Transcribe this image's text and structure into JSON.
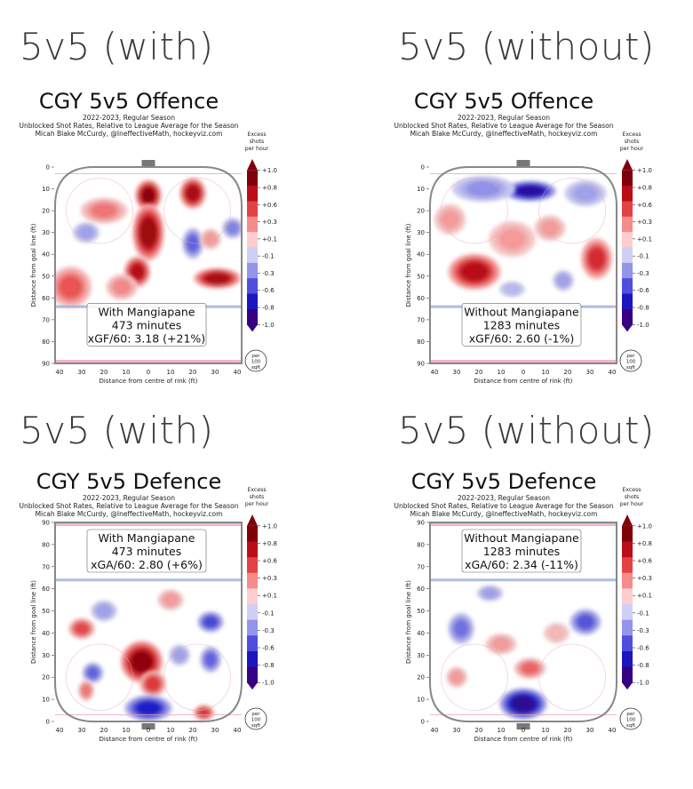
{
  "chart_data": [
    {
      "type": "heatmap",
      "heading": "5v5 (with)",
      "title": "CGY 5v5 Offence",
      "subtitle_lines": [
        "2022-2023, Regular Season",
        "Unblocked Shot Rates, Relative to League Average for the Season",
        "Micah Blake McCurdy, @IneffectiveMath, hockeyviz.com"
      ],
      "orientation": "offence",
      "xlabel": "Distance from centre of rink (ft)",
      "ylabel": "Distance from goal line (ft)",
      "x_ticks": [
        "40",
        "30",
        "20",
        "10",
        "0",
        "10",
        "20",
        "30",
        "40"
      ],
      "y_ticks": [
        "0",
        "10",
        "20",
        "30",
        "40",
        "50",
        "60",
        "70",
        "80",
        "90"
      ],
      "xlim": [
        -42,
        42
      ],
      "ylim": [
        0,
        90
      ],
      "info_lines": [
        "With Mangiapane",
        "473 minutes",
        "xGF/60: 3.18 (+21%)"
      ],
      "hotspots": [
        {
          "x": 0,
          "y": 13,
          "v": 0.95,
          "rx": 5,
          "ry": 6
        },
        {
          "x": 0,
          "y": 30,
          "v": 0.9,
          "rx": 6,
          "ry": 11
        },
        {
          "x": -5,
          "y": 48,
          "v": 0.8,
          "rx": 5,
          "ry": 6
        },
        {
          "x": 20,
          "y": 12,
          "v": 0.85,
          "rx": 5,
          "ry": 6
        },
        {
          "x": 31,
          "y": 51,
          "v": 0.85,
          "rx": 9,
          "ry": 4
        },
        {
          "x": -35,
          "y": 55,
          "v": 0.5,
          "rx": 8,
          "ry": 8
        },
        {
          "x": -20,
          "y": 20,
          "v": 0.4,
          "rx": 9,
          "ry": 5
        },
        {
          "x": -28,
          "y": 30,
          "v": -0.3,
          "rx": 5,
          "ry": 4
        },
        {
          "x": 20,
          "y": 35,
          "v": -0.5,
          "rx": 4,
          "ry": 6
        },
        {
          "x": 38,
          "y": 28,
          "v": -0.4,
          "rx": 4,
          "ry": 4
        },
        {
          "x": -12,
          "y": 55,
          "v": 0.35,
          "rx": 6,
          "ry": 5
        },
        {
          "x": 28,
          "y": 33,
          "v": 0.3,
          "rx": 4,
          "ry": 4
        }
      ],
      "colorbar": {
        "title_lines": [
          "Excess",
          "shots",
          "per hour"
        ],
        "labels": [
          "+1.0",
          "+0.8",
          "+0.6",
          "+0.3",
          "+0.1",
          "-0.1",
          "-0.3",
          "-0.6",
          "-0.8",
          "-1.0"
        ],
        "unit_lines": [
          "per",
          "100",
          "sqft"
        ]
      }
    },
    {
      "type": "heatmap",
      "heading": "5v5 (without)",
      "title": "CGY 5v5 Offence",
      "subtitle_lines": [
        "2022-2023, Regular Season",
        "Unblocked Shot Rates, Relative to League Average for the Season",
        "Micah Blake McCurdy, @IneffectiveMath, hockeyviz.com"
      ],
      "orientation": "offence",
      "xlabel": "Distance from centre of rink (ft)",
      "ylabel": "Distance from goal line (ft)",
      "x_ticks": [
        "40",
        "30",
        "20",
        "10",
        "0",
        "10",
        "20",
        "30",
        "40"
      ],
      "y_ticks": [
        "0",
        "10",
        "20",
        "30",
        "40",
        "50",
        "60",
        "70",
        "80",
        "90"
      ],
      "xlim": [
        -42,
        42
      ],
      "ylim": [
        0,
        90
      ],
      "info_lines": [
        "Without Mangiapane",
        "1283 minutes",
        "xGF/60: 2.60 (-1%)"
      ],
      "hotspots": [
        {
          "x": 3,
          "y": 11,
          "v": -0.9,
          "rx": 10,
          "ry": 4
        },
        {
          "x": -18,
          "y": 10,
          "v": -0.35,
          "rx": 12,
          "ry": 5
        },
        {
          "x": 28,
          "y": 12,
          "v": -0.3,
          "rx": 8,
          "ry": 5
        },
        {
          "x": -22,
          "y": 48,
          "v": 0.8,
          "rx": 10,
          "ry": 7
        },
        {
          "x": 33,
          "y": 42,
          "v": 0.65,
          "rx": 6,
          "ry": 8
        },
        {
          "x": -5,
          "y": 33,
          "v": 0.3,
          "rx": 9,
          "ry": 7
        },
        {
          "x": 12,
          "y": 28,
          "v": 0.3,
          "rx": 6,
          "ry": 5
        },
        {
          "x": -33,
          "y": 24,
          "v": 0.3,
          "rx": 6,
          "ry": 6
        },
        {
          "x": 18,
          "y": 52,
          "v": -0.3,
          "rx": 4,
          "ry": 4
        },
        {
          "x": -5,
          "y": 56,
          "v": -0.2,
          "rx": 5,
          "ry": 3
        }
      ],
      "colorbar": {
        "title_lines": [
          "Excess",
          "shots",
          "per hour"
        ],
        "labels": [
          "+1.0",
          "+0.8",
          "+0.6",
          "+0.3",
          "+0.1",
          "-0.1",
          "-0.3",
          "-0.6",
          "-0.8",
          "-1.0"
        ],
        "unit_lines": [
          "per",
          "100",
          "sqft"
        ]
      }
    },
    {
      "type": "heatmap",
      "heading": "5v5 (with)",
      "title": "CGY 5v5 Defence",
      "subtitle_lines": [
        "2022-2023, Regular Season",
        "Unblocked Shot Rates, Relative to League Average for the Season",
        "Micah Blake McCurdy, @IneffectiveMath, hockeyviz.com"
      ],
      "orientation": "defence",
      "xlabel": "Distance from centre of rink (ft)",
      "ylabel": "Distance from goal line (ft)",
      "x_ticks": [
        "40",
        "30",
        "20",
        "10",
        "0",
        "10",
        "20",
        "30",
        "40"
      ],
      "y_ticks": [
        "90",
        "80",
        "70",
        "60",
        "50",
        "40",
        "30",
        "20",
        "10",
        "0"
      ],
      "xlim": [
        -42,
        42
      ],
      "ylim": [
        0,
        90
      ],
      "info_lines": [
        "With Mangiapane",
        "473 minutes",
        "xGA/60: 2.80 (+6%)"
      ],
      "hotspots": [
        {
          "x": -3,
          "y": 27,
          "v": 0.95,
          "rx": 8,
          "ry": 8
        },
        {
          "x": 2,
          "y": 17,
          "v": 0.6,
          "rx": 5,
          "ry": 5
        },
        {
          "x": -30,
          "y": 42,
          "v": 0.55,
          "rx": 5,
          "ry": 4
        },
        {
          "x": -25,
          "y": 22,
          "v": -0.5,
          "rx": 4,
          "ry": 4
        },
        {
          "x": 25,
          "y": 4,
          "v": 0.6,
          "rx": 4,
          "ry": 3
        },
        {
          "x": -28,
          "y": 14,
          "v": 0.4,
          "rx": 3,
          "ry": 4
        },
        {
          "x": 0,
          "y": 6,
          "v": -0.75,
          "rx": 9,
          "ry": 5
        },
        {
          "x": 28,
          "y": 45,
          "v": -0.6,
          "rx": 5,
          "ry": 4
        },
        {
          "x": 28,
          "y": 28,
          "v": -0.5,
          "rx": 4,
          "ry": 5
        },
        {
          "x": -20,
          "y": 50,
          "v": -0.3,
          "rx": 5,
          "ry": 4
        },
        {
          "x": 14,
          "y": 30,
          "v": -0.3,
          "rx": 4,
          "ry": 4
        },
        {
          "x": 10,
          "y": 55,
          "v": 0.3,
          "rx": 5,
          "ry": 4
        }
      ],
      "colorbar": {
        "title_lines": [
          "Excess",
          "shots",
          "per hour"
        ],
        "labels": [
          "+1.0",
          "+0.8",
          "+0.6",
          "+0.3",
          "+0.1",
          "-0.1",
          "-0.3",
          "-0.6",
          "-0.8",
          "-1.0"
        ],
        "unit_lines": [
          "per",
          "100",
          "sqft"
        ]
      }
    },
    {
      "type": "heatmap",
      "heading": "5v5 (without)",
      "title": "CGY 5v5 Defence",
      "subtitle_lines": [
        "2022-2023, Regular Season",
        "Unblocked Shot Rates, Relative to League Average for the Season",
        "Micah Blake McCurdy, @IneffectiveMath, hockeyviz.com"
      ],
      "orientation": "defence",
      "xlabel": "Distance from centre of rink (ft)",
      "ylabel": "Distance from goal line (ft)",
      "x_ticks": [
        "40",
        "30",
        "20",
        "10",
        "0",
        "10",
        "20",
        "30",
        "40"
      ],
      "y_ticks": [
        "90",
        "80",
        "70",
        "60",
        "50",
        "40",
        "30",
        "20",
        "10",
        "0"
      ],
      "xlim": [
        -42,
        42
      ],
      "ylim": [
        0,
        90
      ],
      "info_lines": [
        "Without Mangiapane",
        "1283 minutes",
        "xGA/60: 2.34 (-11%)"
      ],
      "hotspots": [
        {
          "x": 0,
          "y": 8,
          "v": -0.95,
          "rx": 9,
          "ry": 6
        },
        {
          "x": 28,
          "y": 45,
          "v": -0.55,
          "rx": 6,
          "ry": 5
        },
        {
          "x": -28,
          "y": 42,
          "v": -0.45,
          "rx": 5,
          "ry": 6
        },
        {
          "x": 3,
          "y": 24,
          "v": 0.45,
          "rx": 6,
          "ry": 4
        },
        {
          "x": -10,
          "y": 35,
          "v": 0.3,
          "rx": 6,
          "ry": 4
        },
        {
          "x": -30,
          "y": 20,
          "v": 0.3,
          "rx": 4,
          "ry": 4
        },
        {
          "x": 15,
          "y": 40,
          "v": 0.2,
          "rx": 5,
          "ry": 4
        },
        {
          "x": -15,
          "y": 58,
          "v": -0.3,
          "rx": 5,
          "ry": 3
        }
      ],
      "colorbar": {
        "title_lines": [
          "Excess",
          "shots",
          "per hour"
        ],
        "labels": [
          "+1.0",
          "+0.8",
          "+0.6",
          "+0.3",
          "+0.1",
          "-0.1",
          "-0.3",
          "-0.6",
          "-0.8",
          "-1.0"
        ],
        "unit_lines": [
          "per",
          "100",
          "sqft"
        ]
      }
    }
  ]
}
